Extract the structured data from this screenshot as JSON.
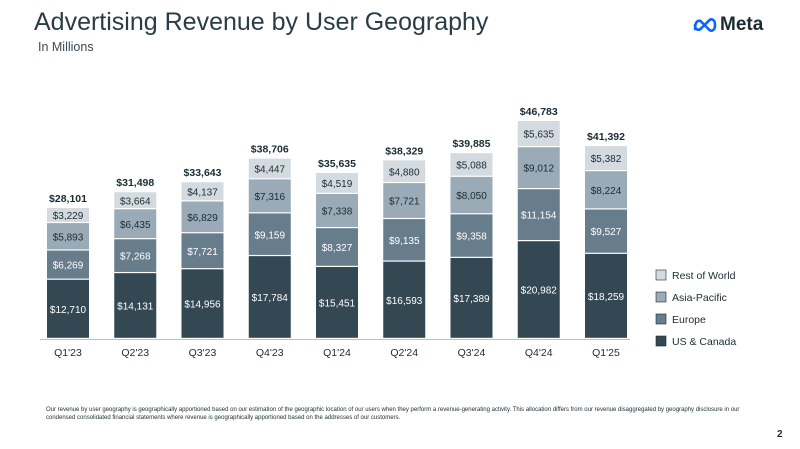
{
  "header": {
    "title": "Advertising Revenue by User Geography",
    "subtitle": "In Millions",
    "brand": "Meta"
  },
  "chart_data": {
    "type": "bar",
    "stacked": true,
    "categories": [
      "Q1'23",
      "Q2'23",
      "Q3'23",
      "Q4'23",
      "Q1'24",
      "Q2'24",
      "Q3'24",
      "Q4'24",
      "Q1'25"
    ],
    "series": [
      {
        "name": "US & Canada",
        "color": "#344854",
        "values": [
          12710,
          14131,
          14956,
          17784,
          15451,
          16593,
          17389,
          20982,
          18259
        ],
        "labels": [
          "$12,710",
          "$14,131",
          "$14,956",
          "$17,784",
          "$15,451",
          "$16,593",
          "$17,389",
          "$20,982",
          "$18,259"
        ]
      },
      {
        "name": "Europe",
        "color": "#677d8b",
        "values": [
          6269,
          7268,
          7721,
          9159,
          8327,
          9135,
          9358,
          11154,
          9527
        ],
        "labels": [
          "$6,269",
          "$7,268",
          "$7,721",
          "$9,159",
          "$8,327",
          "$9,135",
          "$9,358",
          "$11,154",
          "$9,527"
        ]
      },
      {
        "name": "Asia-Pacific",
        "color": "#9aabb7",
        "values": [
          5893,
          6435,
          6829,
          7316,
          7338,
          7721,
          8050,
          9012,
          8224
        ],
        "labels": [
          "$5,893",
          "$6,435",
          "$6,829",
          "$7,316",
          "$7,338",
          "$7,721",
          "$8,050",
          "$9,012",
          "$8,224"
        ]
      },
      {
        "name": "Rest of World",
        "color": "#d4dbe0",
        "values": [
          3229,
          3664,
          4137,
          4447,
          4519,
          4880,
          5088,
          5635,
          5382
        ],
        "labels": [
          "$3,229",
          "$3,664",
          "$4,137",
          "$4,447",
          "$4,519",
          "$4,880",
          "$5,088",
          "$5,635",
          "$5,382"
        ]
      }
    ],
    "totals": [
      28101,
      31498,
      33643,
      38706,
      35635,
      38329,
      39885,
      46783,
      41392
    ],
    "total_labels": [
      "$28,101",
      "$31,498",
      "$33,643",
      "$38,706",
      "$35,635",
      "$38,329",
      "$39,885",
      "$46,783",
      "$41,392"
    ],
    "legend": {
      "placement": "right",
      "order": [
        "Rest of World",
        "Asia-Pacific",
        "Europe",
        "US & Canada"
      ]
    },
    "grid": false
  },
  "footnote": "Our revenue by user geography is geographically apportioned based on our estimation of the geographic location of our users when they perform a revenue-generating activity. This allocation differs from our revenue disaggregated by geography disclosure in our condensed consolidated financial statements where revenue is geographically apportioned based on the addresses of our customers.",
  "page_number": "2"
}
